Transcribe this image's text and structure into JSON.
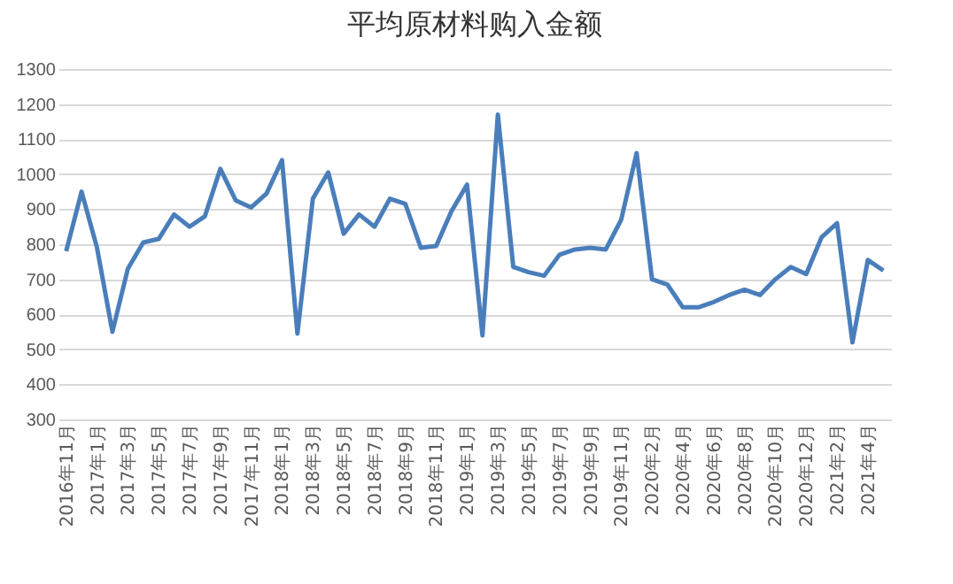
{
  "chart_data": {
    "type": "line",
    "title": "平均原材料购入金额",
    "categories": [
      "2016年11月",
      null,
      "2017年1月",
      null,
      "2017年3月",
      null,
      "2017年5月",
      null,
      "2017年7月",
      null,
      "2017年9月",
      null,
      "2017年11月",
      null,
      "2018年1月",
      null,
      "2018年3月",
      null,
      "2018年5月",
      null,
      "2018年7月",
      null,
      "2018年9月",
      null,
      "2018年11月",
      null,
      "2019年1月",
      null,
      "2019年3月",
      null,
      "2019年5月",
      null,
      "2019年7月",
      null,
      "2019年9月",
      null,
      "2019年11月",
      null,
      "2020年2月",
      null,
      "2020年4月",
      null,
      "2020年6月",
      null,
      "2020年8月",
      null,
      "2020年10月",
      null,
      "2020年12月",
      null,
      "2021年2月",
      null,
      "2021年4月",
      null
    ],
    "series": [
      {
        "color": "#4a7ebb",
        "values": [
          780,
          950,
          790,
          550,
          730,
          805,
          815,
          885,
          850,
          880,
          1015,
          925,
          905,
          945,
          1040,
          545,
          930,
          1005,
          830,
          885,
          850,
          930,
          915,
          790,
          795,
          895,
          970,
          540,
          1170,
          735,
          720,
          710,
          770,
          785,
          790,
          785,
          870,
          1060,
          700,
          685,
          620,
          620,
          635,
          655,
          670,
          655,
          700,
          735,
          715,
          820,
          860,
          520,
          755,
          725
        ]
      }
    ],
    "ylim": [
      300,
      1300
    ],
    "yticks": [
      300,
      400,
      500,
      600,
      700,
      800,
      900,
      1000,
      1100,
      1200,
      1300
    ],
    "grid": "y",
    "legend": false,
    "marker": "none",
    "line_style": "solid"
  }
}
